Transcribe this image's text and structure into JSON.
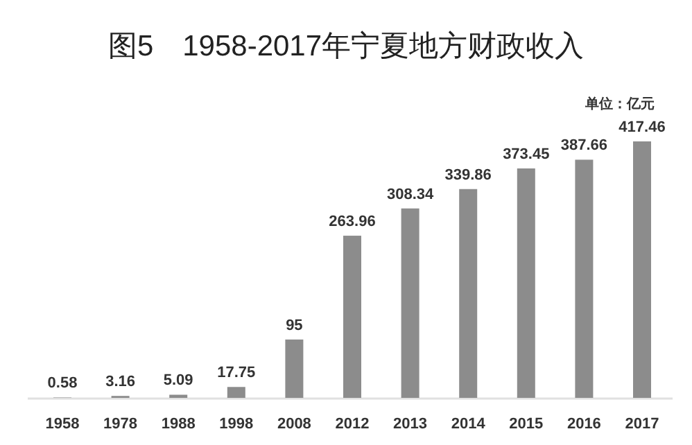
{
  "chart_data": {
    "type": "bar",
    "title": "图5　1958-2017年宁夏地方财政收入",
    "annotations": [
      "单位：亿元"
    ],
    "categories": [
      "1958",
      "1978",
      "1988",
      "1998",
      "2008",
      "2012",
      "2013",
      "2014",
      "2015",
      "2016",
      "2017"
    ],
    "values": [
      0.58,
      3.16,
      5.09,
      17.75,
      95,
      263.96,
      308.34,
      339.86,
      373.45,
      387.66,
      417.46
    ],
    "color": "#8c8c8c",
    "data_labels": true
  }
}
